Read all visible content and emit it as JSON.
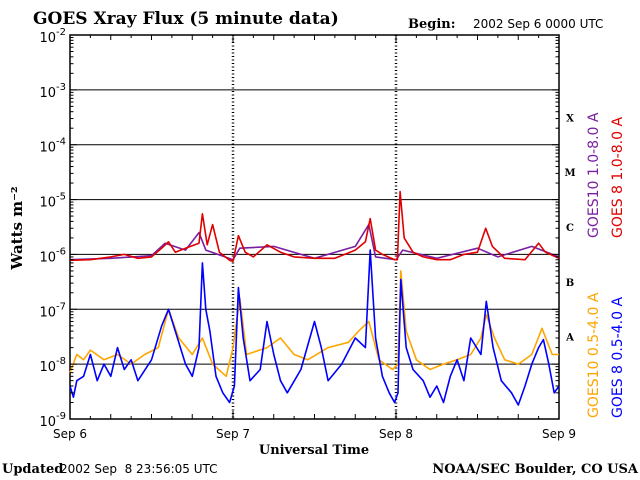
{
  "header": {
    "title": "GOES Xray Flux (5 minute data)",
    "begin_label": "Begin:",
    "begin_value": "2002 Sep 6 0000 UTC"
  },
  "footer": {
    "updated_label": "Updated",
    "updated_value": "2002 Sep  8 23:56:05 UTC",
    "credit": "NOAA/SEC Boulder, CO USA"
  },
  "colors": {
    "goes10_long": "#7b1fa2",
    "goes8_long": "#e00000",
    "goes10_short": "#ffa500",
    "goes8_short": "#0000ff",
    "frame": "#000000"
  },
  "chart_data": {
    "type": "line",
    "title": "GOES Xray Flux (5 minute data)",
    "xlabel": "Universal Time",
    "ylabel": "Watts m⁻²",
    "yscale": "log",
    "ylim": [
      1e-09,
      0.01
    ],
    "xlim": [
      0,
      72
    ],
    "x_units": "hours since 2002 Sep 6 0000 UTC",
    "x_ticks": [
      {
        "x": 0,
        "label": "Sep 6"
      },
      {
        "x": 24,
        "label": "Sep 7"
      },
      {
        "x": 48,
        "label": "Sep 8"
      },
      {
        "x": 72,
        "label": "Sep 9"
      }
    ],
    "y_ticks": [
      {
        "base": "10",
        "exp": "-9",
        "value": 1e-09
      },
      {
        "base": "10",
        "exp": "-8",
        "value": 1e-08
      },
      {
        "base": "10",
        "exp": "-7",
        "value": 1e-07
      },
      {
        "base": "10",
        "exp": "-6",
        "value": 1e-06
      },
      {
        "base": "10",
        "exp": "-5",
        "value": 1e-05
      },
      {
        "base": "10",
        "exp": "-4",
        "value": 0.0001
      },
      {
        "base": "10",
        "exp": "-3",
        "value": 0.001
      },
      {
        "base": "10",
        "exp": "-2",
        "value": 0.01
      }
    ],
    "flare_classes": [
      {
        "label": "A",
        "value": 3.16e-08
      },
      {
        "label": "B",
        "value": 3.16e-07
      },
      {
        "label": "C",
        "value": 3.16e-06
      },
      {
        "label": "M",
        "value": 3.16e-05
      },
      {
        "label": "X",
        "value": 0.000316
      }
    ],
    "grid": "horizontal lines at 1e-8 through 1e-3; dashed vertical lines at day boundaries",
    "legend_placement": "right side, rotated",
    "series": [
      {
        "name": "GOES10 1.0-8.0 A",
        "color": "#7b1fa2",
        "points": [
          [
            0,
            8e-07
          ],
          [
            6,
            8.5e-07
          ],
          [
            12,
            9.5e-07
          ],
          [
            14,
            1.6e-06
          ],
          [
            17,
            1.2e-06
          ],
          [
            19,
            2.5e-06
          ],
          [
            20,
            1.2e-06
          ],
          [
            24,
            8e-07
          ],
          [
            25,
            1.3e-06
          ],
          [
            30,
            1.4e-06
          ],
          [
            36,
            8.5e-07
          ],
          [
            42,
            1.4e-06
          ],
          [
            44,
            3.5e-06
          ],
          [
            45,
            9e-07
          ],
          [
            48,
            8e-07
          ],
          [
            49,
            1.2e-06
          ],
          [
            54,
            8.5e-07
          ],
          [
            60,
            1.3e-06
          ],
          [
            63,
            9e-07
          ],
          [
            68,
            1.4e-06
          ],
          [
            72,
            9e-07
          ]
        ]
      },
      {
        "name": "GOES 8 1.0-8.0 A",
        "color": "#e00000",
        "points": [
          [
            0,
            7.8e-07
          ],
          [
            3,
            8e-07
          ],
          [
            6,
            9e-07
          ],
          [
            8,
            1e-06
          ],
          [
            10,
            8.5e-07
          ],
          [
            12,
            9e-07
          ],
          [
            13.5,
            1.3e-06
          ],
          [
            14.5,
            1.7e-06
          ],
          [
            15.5,
            1.1e-06
          ],
          [
            17,
            1.3e-06
          ],
          [
            19,
            1.6e-06
          ],
          [
            19.5,
            5.5e-06
          ],
          [
            20.2,
            1.5e-06
          ],
          [
            21,
            3.5e-06
          ],
          [
            22,
            1.1e-06
          ],
          [
            23.5,
            7.8e-07
          ],
          [
            24,
            7.5e-07
          ],
          [
            24.8,
            2.2e-06
          ],
          [
            25.8,
            1.1e-06
          ],
          [
            27,
            9e-07
          ],
          [
            29,
            1.5e-06
          ],
          [
            31,
            1.1e-06
          ],
          [
            33,
            9e-07
          ],
          [
            36,
            8.5e-07
          ],
          [
            39,
            8.5e-07
          ],
          [
            42,
            1.2e-06
          ],
          [
            43.5,
            1.7e-06
          ],
          [
            44.2,
            4.5e-06
          ],
          [
            45,
            1.2e-06
          ],
          [
            46,
            1e-06
          ],
          [
            47.8,
            8e-07
          ],
          [
            48.2,
            8e-07
          ],
          [
            48.6,
            1.4e-05
          ],
          [
            49.2,
            2e-06
          ],
          [
            50.5,
            1.1e-06
          ],
          [
            52,
            9e-07
          ],
          [
            54,
            8e-07
          ],
          [
            56,
            8e-07
          ],
          [
            58,
            1e-06
          ],
          [
            60,
            1.1e-06
          ],
          [
            61.2,
            3e-06
          ],
          [
            62.2,
            1.4e-06
          ],
          [
            64,
            8.5e-07
          ],
          [
            67,
            8e-07
          ],
          [
            69,
            1.6e-06
          ],
          [
            70,
            1.1e-06
          ],
          [
            72,
            8.5e-07
          ]
        ]
      },
      {
        "name": "GOES10 0.5-4.0 A",
        "color": "#ffa500",
        "points": [
          [
            0,
            7e-09
          ],
          [
            1,
            1.5e-08
          ],
          [
            2,
            1.2e-08
          ],
          [
            3,
            1.8e-08
          ],
          [
            5,
            1.2e-08
          ],
          [
            7,
            1.5e-08
          ],
          [
            9,
            1e-08
          ],
          [
            11,
            1.5e-08
          ],
          [
            13,
            2e-08
          ],
          [
            14.5,
            1e-07
          ],
          [
            16,
            3e-08
          ],
          [
            18,
            1.5e-08
          ],
          [
            19.5,
            3e-08
          ],
          [
            21,
            1e-08
          ],
          [
            23,
            6e-09
          ],
          [
            24,
            2e-08
          ],
          [
            25,
            1.6e-07
          ],
          [
            26,
            1.5e-08
          ],
          [
            29,
            2e-08
          ],
          [
            31,
            3e-08
          ],
          [
            33,
            1.5e-08
          ],
          [
            35,
            1.2e-08
          ],
          [
            38,
            2e-08
          ],
          [
            41,
            2.5e-08
          ],
          [
            42.5,
            4e-08
          ],
          [
            44,
            6e-08
          ],
          [
            45.5,
            1.2e-08
          ],
          [
            47.5,
            8e-09
          ],
          [
            48.3,
            1e-08
          ],
          [
            48.7,
            5e-07
          ],
          [
            49.5,
            4e-08
          ],
          [
            51,
            1.2e-08
          ],
          [
            53,
            8e-09
          ],
          [
            55,
            1e-08
          ],
          [
            57,
            1.2e-08
          ],
          [
            59,
            1.5e-08
          ],
          [
            60.5,
            3e-08
          ],
          [
            61.3,
            8e-08
          ],
          [
            62.5,
            3e-08
          ],
          [
            64,
            1.2e-08
          ],
          [
            66,
            1e-08
          ],
          [
            68,
            1.5e-08
          ],
          [
            69.5,
            4.5e-08
          ],
          [
            71,
            1.5e-08
          ],
          [
            72,
            1.5e-08
          ]
        ]
      },
      {
        "name": "GOES 8 0.5-4.0 A",
        "color": "#0000ff",
        "points": [
          [
            0,
            4e-09
          ],
          [
            0.5,
            2.5e-09
          ],
          [
            1,
            5e-09
          ],
          [
            2,
            6e-09
          ],
          [
            3,
            1.5e-08
          ],
          [
            4,
            5e-09
          ],
          [
            5,
            1e-08
          ],
          [
            6,
            6e-09
          ],
          [
            7,
            2e-08
          ],
          [
            8,
            8e-09
          ],
          [
            9,
            1.2e-08
          ],
          [
            10,
            5e-09
          ],
          [
            12,
            1.2e-08
          ],
          [
            13.5,
            5e-08
          ],
          [
            14.5,
            1e-07
          ],
          [
            15.5,
            4e-08
          ],
          [
            17,
            1e-08
          ],
          [
            18,
            6e-09
          ],
          [
            19,
            2e-08
          ],
          [
            19.5,
            7e-07
          ],
          [
            20,
            1e-07
          ],
          [
            20.6,
            4e-08
          ],
          [
            21.5,
            6e-09
          ],
          [
            22.5,
            3e-09
          ],
          [
            23.5,
            2e-09
          ],
          [
            24.2,
            4e-09
          ],
          [
            24.8,
            2.5e-07
          ],
          [
            25.5,
            3e-08
          ],
          [
            26.5,
            5e-09
          ],
          [
            28,
            8e-09
          ],
          [
            29,
            6e-08
          ],
          [
            30,
            1.5e-08
          ],
          [
            31,
            5e-09
          ],
          [
            32,
            3e-09
          ],
          [
            34,
            8e-09
          ],
          [
            36,
            6e-08
          ],
          [
            37,
            2e-08
          ],
          [
            38,
            5e-09
          ],
          [
            40,
            1e-08
          ],
          [
            42,
            3e-08
          ],
          [
            43.5,
            2e-08
          ],
          [
            44.2,
            1.2e-06
          ],
          [
            45,
            3e-08
          ],
          [
            46,
            6e-09
          ],
          [
            47,
            3e-09
          ],
          [
            47.8,
            2e-09
          ],
          [
            48.3,
            3e-09
          ],
          [
            48.7,
            3.5e-07
          ],
          [
            49.5,
            2e-08
          ],
          [
            50.5,
            8e-09
          ],
          [
            52,
            5e-09
          ],
          [
            53,
            2.5e-09
          ],
          [
            54,
            4e-09
          ],
          [
            55,
            2e-09
          ],
          [
            56,
            6e-09
          ],
          [
            57,
            1.2e-08
          ],
          [
            58,
            5e-09
          ],
          [
            59,
            3e-08
          ],
          [
            60.5,
            1.5e-08
          ],
          [
            61.3,
            1.4e-07
          ],
          [
            62.3,
            2e-08
          ],
          [
            63.5,
            5e-09
          ],
          [
            65,
            3e-09
          ],
          [
            66,
            1.8e-09
          ],
          [
            67,
            4e-09
          ],
          [
            68,
            1e-08
          ],
          [
            69,
            2e-08
          ],
          [
            69.7,
            2.8e-08
          ],
          [
            70.5,
            1e-08
          ],
          [
            71.3,
            3e-09
          ],
          [
            72,
            4e-09
          ]
        ]
      }
    ]
  }
}
